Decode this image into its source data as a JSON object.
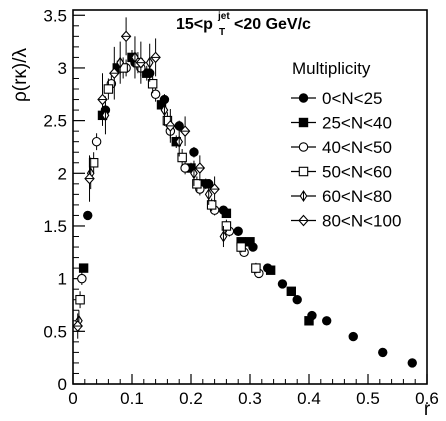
{
  "chart_data": {
    "type": "scatter",
    "title": "",
    "annotation": {
      "prefix": "15<p",
      "sub": "T",
      "sup": "jet",
      "suffix": "<20 GeV/c"
    },
    "xlabel": "r",
    "ylabel": "ρ(rκ)/λ",
    "xlim": [
      0,
      0.6
    ],
    "ylim": [
      0,
      3.55
    ],
    "x_ticks": [
      "0",
      "0.1",
      "0.2",
      "0.3",
      "0.4",
      "0.5",
      "0.6"
    ],
    "x_tick_values": [
      0,
      0.1,
      0.2,
      0.3,
      0.4,
      0.5,
      0.6
    ],
    "y_ticks": [
      "0",
      "0.5",
      "1",
      "1.5",
      "2",
      "2.5",
      "3",
      "3.5"
    ],
    "y_tick_values": [
      0,
      0.5,
      1,
      1.5,
      2,
      2.5,
      3,
      3.5
    ],
    "legend": {
      "title": "Multiplicity",
      "placement": "right"
    },
    "series": [
      {
        "name": "0<N<25",
        "marker": "filled-circle",
        "x": [
          0.025,
          0.055,
          0.08,
          0.105,
          0.13,
          0.155,
          0.18,
          0.205,
          0.23,
          0.255,
          0.28,
          0.305,
          0.33,
          0.355,
          0.38,
          0.405,
          0.43,
          0.475,
          0.525,
          0.575
        ],
        "y": [
          1.6,
          2.6,
          3.0,
          3.05,
          2.95,
          2.7,
          2.45,
          2.2,
          1.9,
          1.65,
          1.45,
          1.3,
          1.1,
          0.95,
          0.8,
          0.65,
          0.6,
          0.45,
          0.3,
          0.2
        ],
        "err": [
          0.03,
          0.05,
          0.06,
          0.06,
          0.06,
          0.05,
          0.05,
          0.05,
          0.04,
          0.04,
          0.03,
          0.03,
          0.03,
          0.03,
          0.03,
          0.02,
          0.02,
          0.02,
          0.02,
          0.02
        ]
      },
      {
        "name": "25<N<40",
        "marker": "filled-square",
        "x": [
          0.018,
          0.05,
          0.075,
          0.1,
          0.125,
          0.15,
          0.175,
          0.2,
          0.225,
          0.26,
          0.285,
          0.3,
          0.335,
          0.37,
          0.4
        ],
        "y": [
          1.1,
          2.55,
          3.0,
          3.1,
          2.95,
          2.65,
          2.3,
          2.05,
          1.9,
          1.62,
          1.35,
          1.35,
          1.08,
          0.88,
          0.6
        ],
        "err": [
          0.04,
          0.06,
          0.07,
          0.07,
          0.07,
          0.06,
          0.06,
          0.05,
          0.05,
          0.04,
          0.04,
          0.04,
          0.03,
          0.03,
          0.03
        ]
      },
      {
        "name": "40<N<50",
        "marker": "open-circle",
        "x": [
          0.015,
          0.04,
          0.065,
          0.09,
          0.115,
          0.14,
          0.165,
          0.19,
          0.215,
          0.24,
          0.265,
          0.29,
          0.315
        ],
        "y": [
          1.0,
          2.3,
          2.85,
          3.0,
          3.0,
          2.75,
          2.4,
          2.05,
          1.85,
          1.65,
          1.45,
          1.25,
          1.05
        ],
        "err": [
          0.06,
          0.08,
          0.08,
          0.08,
          0.08,
          0.07,
          0.07,
          0.06,
          0.06,
          0.05,
          0.05,
          0.04,
          0.04
        ]
      },
      {
        "name": "50<N<60",
        "marker": "open-square",
        "x": [
          0.012,
          0.035,
          0.06,
          0.085,
          0.11,
          0.135,
          0.16,
          0.185,
          0.21,
          0.235,
          0.26,
          0.285,
          0.31
        ],
        "y": [
          0.8,
          2.1,
          2.8,
          3.0,
          3.05,
          2.85,
          2.5,
          2.15,
          1.9,
          1.7,
          1.5,
          1.3,
          1.1
        ],
        "err": [
          0.08,
          0.1,
          0.1,
          0.1,
          0.1,
          0.09,
          0.08,
          0.08,
          0.07,
          0.06,
          0.06,
          0.05,
          0.05
        ]
      },
      {
        "name": "60<N<80",
        "marker": "open-diamond-cross",
        "x": [
          0.01,
          0.03,
          0.055,
          0.08,
          0.105,
          0.13,
          0.155,
          0.18,
          0.205,
          0.23,
          0.255
        ],
        "y": [
          0.6,
          2.0,
          2.55,
          3.05,
          3.1,
          3.05,
          2.6,
          2.3,
          2.0,
          1.8,
          1.4
        ],
        "err": [
          0.1,
          0.15,
          0.18,
          0.2,
          0.2,
          0.18,
          0.15,
          0.14,
          0.12,
          0.1,
          0.1
        ]
      },
      {
        "name": "80<N<100",
        "marker": "open-diamond-line",
        "x": [
          0.008,
          0.028,
          0.05,
          0.07,
          0.09,
          0.115,
          0.14,
          0.165,
          0.19,
          0.215,
          0.24
        ],
        "y": [
          0.55,
          1.95,
          2.7,
          2.95,
          3.3,
          3.05,
          3.1,
          2.45,
          2.4,
          2.05,
          1.85
        ],
        "err": [
          0.12,
          0.22,
          0.25,
          0.25,
          0.18,
          0.2,
          0.18,
          0.16,
          0.14,
          0.12,
          0.12
        ]
      }
    ]
  }
}
